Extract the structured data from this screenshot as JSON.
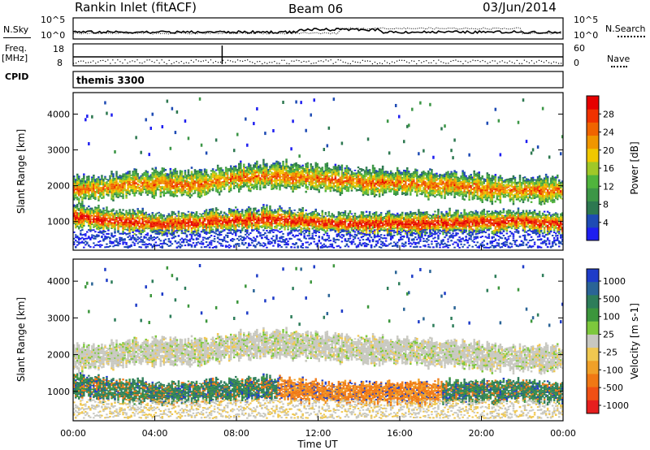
{
  "header": {
    "station": "Rankin Inlet (fitACF)",
    "beam": "Beam 06",
    "date": "03/Jun/2014"
  },
  "panel_labels": {
    "nsky": "N.Sky",
    "nsearch": "N.Search",
    "freq_line1": "Freq.",
    "freq_line2": "[MHz]",
    "nave": "Nave",
    "cpid": "CPID",
    "cpid_value": "themis 3300"
  },
  "small_axes": {
    "noise_ticks": [
      "10^5",
      "10^0"
    ],
    "freq_ticks": [
      "18",
      "8"
    ],
    "nave_ticks": [
      "60",
      "0"
    ]
  },
  "colors": {
    "power_scale": [
      "#1e1ef0",
      "#1e4bb4",
      "#2d7850",
      "#3c9646",
      "#50b43c",
      "#a0c828",
      "#f0c800",
      "#f09600",
      "#f06400",
      "#f03200",
      "#e60000"
    ],
    "velocity_scale": [
      "#1e3cc8",
      "#2a6496",
      "#2d7d5a",
      "#3c963c",
      "#7dc83c",
      "#c8c8c0",
      "#f0c850",
      "#f0a028",
      "#f07814",
      "#f05014",
      "#e61e1e"
    ]
  },
  "chart_data": [
    {
      "type": "heatmap",
      "title": "Power",
      "xlabel": "",
      "ylabel": "Slant Range [km]",
      "xlim": [
        0,
        24
      ],
      "ylim": [
        200,
        4600
      ],
      "y_ticks": [
        1000,
        2000,
        3000,
        4000
      ],
      "colorbar": {
        "label": "Power [dB]",
        "ticks": [
          4,
          8,
          12,
          16,
          20,
          24,
          28
        ],
        "range": [
          0,
          32
        ]
      },
      "bands": [
        {
          "name": "lower",
          "center_km": [
            1150,
            1050,
            950,
            1000,
            1050,
            1100,
            1000,
            950,
            950,
            1000,
            1000,
            1050,
            950
          ],
          "width_km": 550
        },
        {
          "name": "upper",
          "center_km": [
            1900,
            2000,
            2100,
            2050,
            2250,
            2300,
            2200,
            2150,
            2100,
            2050,
            1950,
            1900,
            1900
          ],
          "width_km": 650
        }
      ],
      "band_times_ut": [
        0,
        2,
        4,
        6,
        8,
        10,
        12,
        14,
        16,
        18,
        20,
        22,
        24
      ]
    },
    {
      "type": "heatmap",
      "title": "Velocity",
      "xlabel": "Time UT",
      "ylabel": "Slant Range [km]",
      "xlim": [
        0,
        24
      ],
      "ylim": [
        200,
        4600
      ],
      "x_ticks": [
        "00:00",
        "04:00",
        "08:00",
        "12:00",
        "16:00",
        "20:00",
        "00:00"
      ],
      "y_ticks": [
        1000,
        2000,
        3000,
        4000
      ],
      "colorbar": {
        "label": "Velocity [m s-1]",
        "ticks": [
          1000,
          500,
          100,
          25,
          -25,
          -100,
          -500,
          -1000
        ]
      }
    },
    {
      "type": "line",
      "title": "",
      "series": [
        {
          "name": "N.Sky"
        },
        {
          "name": "N.Search"
        }
      ]
    }
  ]
}
